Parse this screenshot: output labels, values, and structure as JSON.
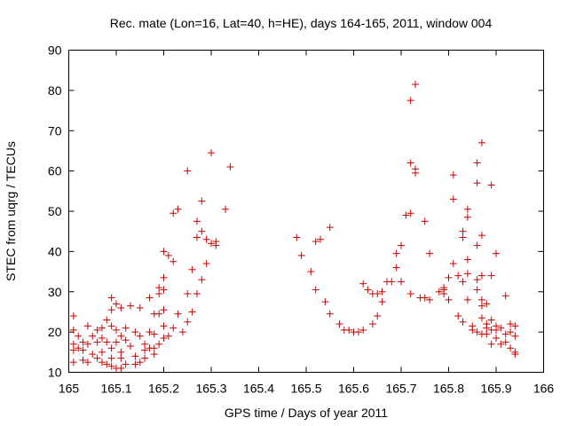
{
  "chart_data": {
    "type": "scatter",
    "title": "Rec. mate (Lon=16, Lat=40, h=HE), days 164-165, 2011, window 004",
    "xlabel": "GPS time / Days of year 2011",
    "ylabel": "STEC from uqrg / TECUs",
    "xlim": [
      165,
      166
    ],
    "ylim": [
      10,
      90
    ],
    "xticks": [
      165,
      165.1,
      165.2,
      165.3,
      165.4,
      165.5,
      165.6,
      165.7,
      165.8,
      165.9,
      166
    ],
    "yticks": [
      10,
      20,
      30,
      40,
      50,
      60,
      70,
      80,
      90
    ],
    "xtick_labels": [
      "165",
      "165.1",
      "165.2",
      "165.3",
      "165.4",
      "165.5",
      "165.6",
      "165.7",
      "165.8",
      "165.9",
      "166"
    ],
    "ytick_labels": [
      "10",
      "20",
      "30",
      "40",
      "50",
      "60",
      "70",
      "80",
      "90"
    ],
    "marker": "plus",
    "grid": false,
    "series": [
      {
        "name": "STEC",
        "color": "#cc0000",
        "points": [
          [
            165.01,
            24.0
          ],
          [
            165.01,
            20.5
          ],
          [
            165.01,
            17.0
          ],
          [
            165.01,
            15.5
          ],
          [
            165.01,
            12.5
          ],
          [
            165.02,
            19.0
          ],
          [
            165.02,
            16.0
          ],
          [
            165.03,
            17.5
          ],
          [
            165.03,
            15.5
          ],
          [
            165.03,
            13.0
          ],
          [
            165.04,
            21.5
          ],
          [
            165.04,
            17.0
          ],
          [
            165.04,
            12.5
          ],
          [
            165.05,
            19.0
          ],
          [
            165.05,
            14.5
          ],
          [
            165.06,
            20.5
          ],
          [
            165.06,
            17.5
          ],
          [
            165.06,
            13.5
          ],
          [
            165.07,
            21.0
          ],
          [
            165.07,
            18.5
          ],
          [
            165.07,
            15.0
          ],
          [
            165.07,
            12.5
          ],
          [
            165.08,
            23.0
          ],
          [
            165.08,
            17.5
          ],
          [
            165.08,
            12.0
          ],
          [
            165.09,
            28.5
          ],
          [
            165.09,
            25.5
          ],
          [
            165.09,
            21.5
          ],
          [
            165.09,
            16.0
          ],
          [
            165.09,
            13.5
          ],
          [
            165.09,
            11.5
          ],
          [
            165.1,
            27.0
          ],
          [
            165.1,
            20.5
          ],
          [
            165.1,
            17.5
          ],
          [
            165.1,
            11.0
          ],
          [
            165.11,
            26.0
          ],
          [
            165.11,
            19.0
          ],
          [
            165.11,
            15.0
          ],
          [
            165.11,
            13.5
          ],
          [
            165.11,
            11.0
          ],
          [
            165.12,
            21.0
          ],
          [
            165.12,
            18.0
          ],
          [
            165.12,
            12.0
          ],
          [
            165.13,
            26.5
          ],
          [
            165.13,
            16.5
          ],
          [
            165.14,
            20.0
          ],
          [
            165.14,
            14.0
          ],
          [
            165.14,
            12.0
          ],
          [
            165.15,
            26.0
          ],
          [
            165.15,
            19.0
          ],
          [
            165.15,
            12.5
          ],
          [
            165.16,
            17.0
          ],
          [
            165.16,
            15.5
          ],
          [
            165.16,
            13.5
          ],
          [
            165.17,
            28.5
          ],
          [
            165.17,
            20.0
          ],
          [
            165.17,
            16.0
          ],
          [
            165.18,
            24.5
          ],
          [
            165.18,
            19.5
          ],
          [
            165.18,
            16.0
          ],
          [
            165.18,
            14.5
          ],
          [
            165.19,
            31.0
          ],
          [
            165.19,
            24.5
          ],
          [
            165.19,
            17.0
          ],
          [
            165.19,
            29.5
          ],
          [
            165.2,
            40.0
          ],
          [
            165.2,
            33.5
          ],
          [
            165.2,
            30.5
          ],
          [
            165.2,
            25.5
          ],
          [
            165.2,
            21.5
          ],
          [
            165.2,
            18.5
          ],
          [
            165.21,
            39.0
          ],
          [
            165.21,
            19.0
          ],
          [
            165.22,
            49.5
          ],
          [
            165.22,
            37.5
          ],
          [
            165.22,
            21.0
          ],
          [
            165.23,
            50.5
          ],
          [
            165.23,
            24.5
          ],
          [
            165.24,
            20.0
          ],
          [
            165.25,
            60.0
          ],
          [
            165.25,
            29.5
          ],
          [
            165.25,
            22.5
          ],
          [
            165.26,
            35.5
          ],
          [
            165.26,
            25.0
          ],
          [
            165.27,
            47.5
          ],
          [
            165.27,
            43.5
          ],
          [
            165.27,
            29.5
          ],
          [
            165.28,
            52.5
          ],
          [
            165.28,
            45.0
          ],
          [
            165.28,
            33.0
          ],
          [
            165.29,
            43.0
          ],
          [
            165.29,
            37.0
          ],
          [
            165.3,
            64.5
          ],
          [
            165.3,
            42.0
          ],
          [
            165.31,
            42.5
          ],
          [
            165.31,
            41.5
          ],
          [
            165.33,
            50.5
          ],
          [
            165.34,
            61.0
          ],
          [
            165.48,
            43.5
          ],
          [
            165.49,
            39.0
          ],
          [
            165.51,
            35.0
          ],
          [
            165.52,
            42.5
          ],
          [
            165.52,
            30.5
          ],
          [
            165.53,
            43.0
          ],
          [
            165.54,
            27.5
          ],
          [
            165.55,
            46.0
          ],
          [
            165.55,
            24.5
          ],
          [
            165.57,
            22.0
          ],
          [
            165.58,
            20.5
          ],
          [
            165.59,
            20.5
          ],
          [
            165.6,
            20.0
          ],
          [
            165.61,
            20.0
          ],
          [
            165.62,
            32.0
          ],
          [
            165.62,
            20.5
          ],
          [
            165.63,
            30.5
          ],
          [
            165.64,
            22.0
          ],
          [
            165.64,
            29.5
          ],
          [
            165.65,
            29.5
          ],
          [
            165.65,
            24.0
          ],
          [
            165.66,
            30.0
          ],
          [
            165.66,
            27.5
          ],
          [
            165.67,
            32.5
          ],
          [
            165.68,
            32.5
          ],
          [
            165.69,
            39.5
          ],
          [
            165.69,
            36.0
          ],
          [
            165.7,
            32.5
          ],
          [
            165.7,
            41.5
          ],
          [
            165.71,
            49.0
          ],
          [
            165.72,
            77.5
          ],
          [
            165.72,
            62.0
          ],
          [
            165.72,
            49.5
          ],
          [
            165.72,
            29.5
          ],
          [
            165.73,
            81.5
          ],
          [
            165.73,
            60.5
          ],
          [
            165.73,
            59.5
          ],
          [
            165.74,
            28.5
          ],
          [
            165.75,
            47.5
          ],
          [
            165.75,
            28.5
          ],
          [
            165.76,
            39.5
          ],
          [
            165.76,
            28.0
          ],
          [
            165.78,
            30.0
          ],
          [
            165.79,
            31.0
          ],
          [
            165.79,
            29.5
          ],
          [
            165.79,
            30.5
          ],
          [
            165.8,
            33.5
          ],
          [
            165.8,
            28.0
          ],
          [
            165.81,
            59.0
          ],
          [
            165.81,
            53.0
          ],
          [
            165.81,
            37.0
          ],
          [
            165.82,
            34.0
          ],
          [
            165.82,
            24.0
          ],
          [
            165.83,
            45.0
          ],
          [
            165.83,
            43.5
          ],
          [
            165.83,
            32.5
          ],
          [
            165.83,
            22.5
          ],
          [
            165.84,
            50.5
          ],
          [
            165.84,
            48.5
          ],
          [
            165.84,
            38.0
          ],
          [
            165.84,
            34.5
          ],
          [
            165.84,
            28.0
          ],
          [
            165.85,
            21.5
          ],
          [
            165.85,
            20.5
          ],
          [
            165.86,
            62.0
          ],
          [
            165.86,
            57.0
          ],
          [
            165.86,
            41.5
          ],
          [
            165.86,
            33.0
          ],
          [
            165.86,
            30.5
          ],
          [
            165.86,
            20.0
          ],
          [
            165.87,
            67.0
          ],
          [
            165.87,
            44.0
          ],
          [
            165.87,
            34.0
          ],
          [
            165.87,
            28.0
          ],
          [
            165.87,
            26.5
          ],
          [
            165.87,
            23.5
          ],
          [
            165.87,
            19.5
          ],
          [
            165.88,
            27.0
          ],
          [
            165.88,
            22.0
          ],
          [
            165.88,
            21.0
          ],
          [
            165.88,
            19.5
          ],
          [
            165.89,
            56.5
          ],
          [
            165.89,
            34.0
          ],
          [
            165.89,
            23.0
          ],
          [
            165.89,
            20.5
          ],
          [
            165.89,
            17.0
          ],
          [
            165.9,
            39.5
          ],
          [
            165.9,
            21.5
          ],
          [
            165.9,
            20.5
          ],
          [
            165.9,
            18.5
          ],
          [
            165.91,
            21.0
          ],
          [
            165.91,
            17.0
          ],
          [
            165.92,
            29.0
          ],
          [
            165.92,
            19.5
          ],
          [
            165.92,
            17.5
          ],
          [
            165.93,
            22.0
          ],
          [
            165.93,
            20.0
          ],
          [
            165.93,
            16.0
          ],
          [
            165.94,
            21.5
          ],
          [
            165.94,
            19.0
          ],
          [
            165.94,
            15.0
          ],
          [
            165.94,
            14.5
          ]
        ]
      }
    ]
  }
}
